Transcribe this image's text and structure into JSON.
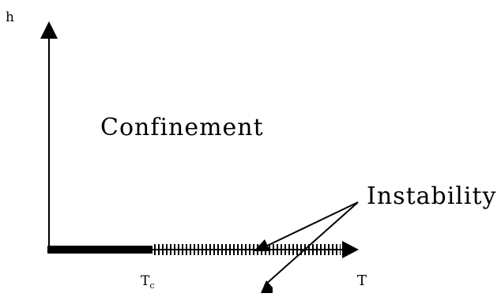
{
  "diagram": {
    "axis_y_label": "h",
    "axis_x_label": "T",
    "tc_label": {
      "main": "T",
      "sub": "c"
    },
    "region_label": "Confinement",
    "annotation_label": "Instability"
  }
}
